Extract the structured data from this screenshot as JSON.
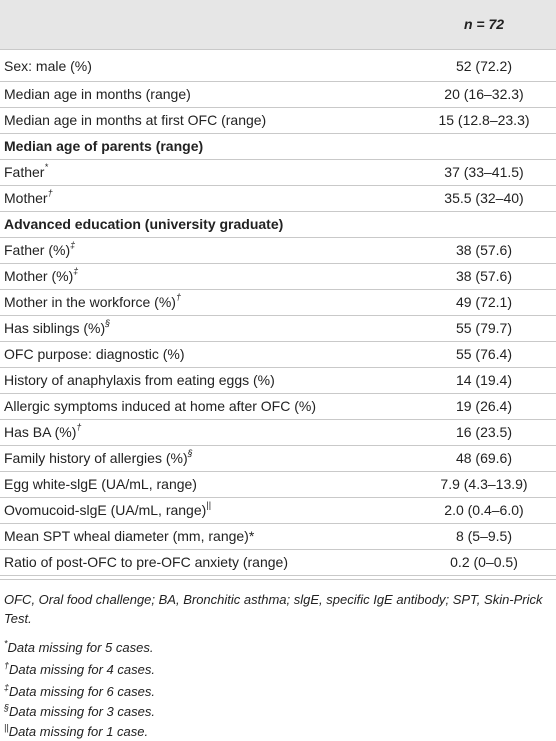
{
  "header": {
    "n_label": "n",
    "n_value": "= 72"
  },
  "rows": [
    {
      "label": "Sex: male (%)",
      "mark": "",
      "value": "52 (72.2)"
    },
    {
      "label": "Median age in months (range)",
      "mark": "",
      "value": "20 (16–32.3)"
    },
    {
      "label": "Median age in months at first OFC (range)",
      "mark": "",
      "value": "15 (12.8–23.3)"
    },
    {
      "label": "Median age of parents (range)",
      "mark": "",
      "value": ""
    },
    {
      "label": "Father",
      "mark": "*",
      "value": "37 (33–41.5)"
    },
    {
      "label": "Mother",
      "mark": "†",
      "value": "35.5 (32–40)"
    },
    {
      "label": "Advanced education (university graduate)",
      "mark": "",
      "value": ""
    },
    {
      "label": "Father (%)",
      "mark": "‡",
      "value": "38 (57.6)"
    },
    {
      "label": "Mother (%)",
      "mark": "‡",
      "value": "38 (57.6)"
    },
    {
      "label": "Mother in the workforce (%)",
      "mark": "†",
      "value": "49 (72.1)"
    },
    {
      "label": "Has siblings (%)",
      "mark": "§",
      "value": "55 (79.7)"
    },
    {
      "label": "OFC purpose: diagnostic (%)",
      "mark": "",
      "value": "55 (76.4)"
    },
    {
      "label": "History of anaphylaxis from eating eggs (%)",
      "mark": "",
      "value": "14 (19.4)"
    },
    {
      "label": "Allergic symptoms induced at home after OFC (%)",
      "mark": "",
      "value": "19 (26.4)"
    },
    {
      "label": "Has BA (%)",
      "mark": "†",
      "value": "16 (23.5)"
    },
    {
      "label": "Family history of allergies (%)",
      "mark": "§",
      "value": "48 (69.6)"
    },
    {
      "label": "Egg white-slgE (UA/mL, range)",
      "mark": "",
      "value": "7.9 (4.3–13.9)"
    },
    {
      "label": "Ovomucoid-slgE (UA/mL, range)",
      "mark": "||",
      "value": "2.0 (0.4–6.0)"
    },
    {
      "label": "Mean SPT wheal diameter (mm, range)*",
      "mark": "",
      "value": "8 (5–9.5)"
    },
    {
      "label": "Ratio of post-OFC to pre-OFC anxiety (range)",
      "mark": "",
      "value": "0.2 (0–0.5)"
    }
  ],
  "footnotes": {
    "abbreviations": "OFC, Oral food challenge; BA, Bronchitic asthma; slgE, specific IgE antibody; SPT, Skin-Prick Test.",
    "notes": [
      {
        "mark": "*",
        "text": "Data missing for 5 cases."
      },
      {
        "mark": "†",
        "text": "Data missing for 4 cases."
      },
      {
        "mark": "‡",
        "text": "Data missing for 6 cases."
      },
      {
        "mark": "§",
        "text": "Data missing for 3 cases."
      },
      {
        "mark": "||",
        "text": "Data missing for 1 case."
      }
    ]
  }
}
